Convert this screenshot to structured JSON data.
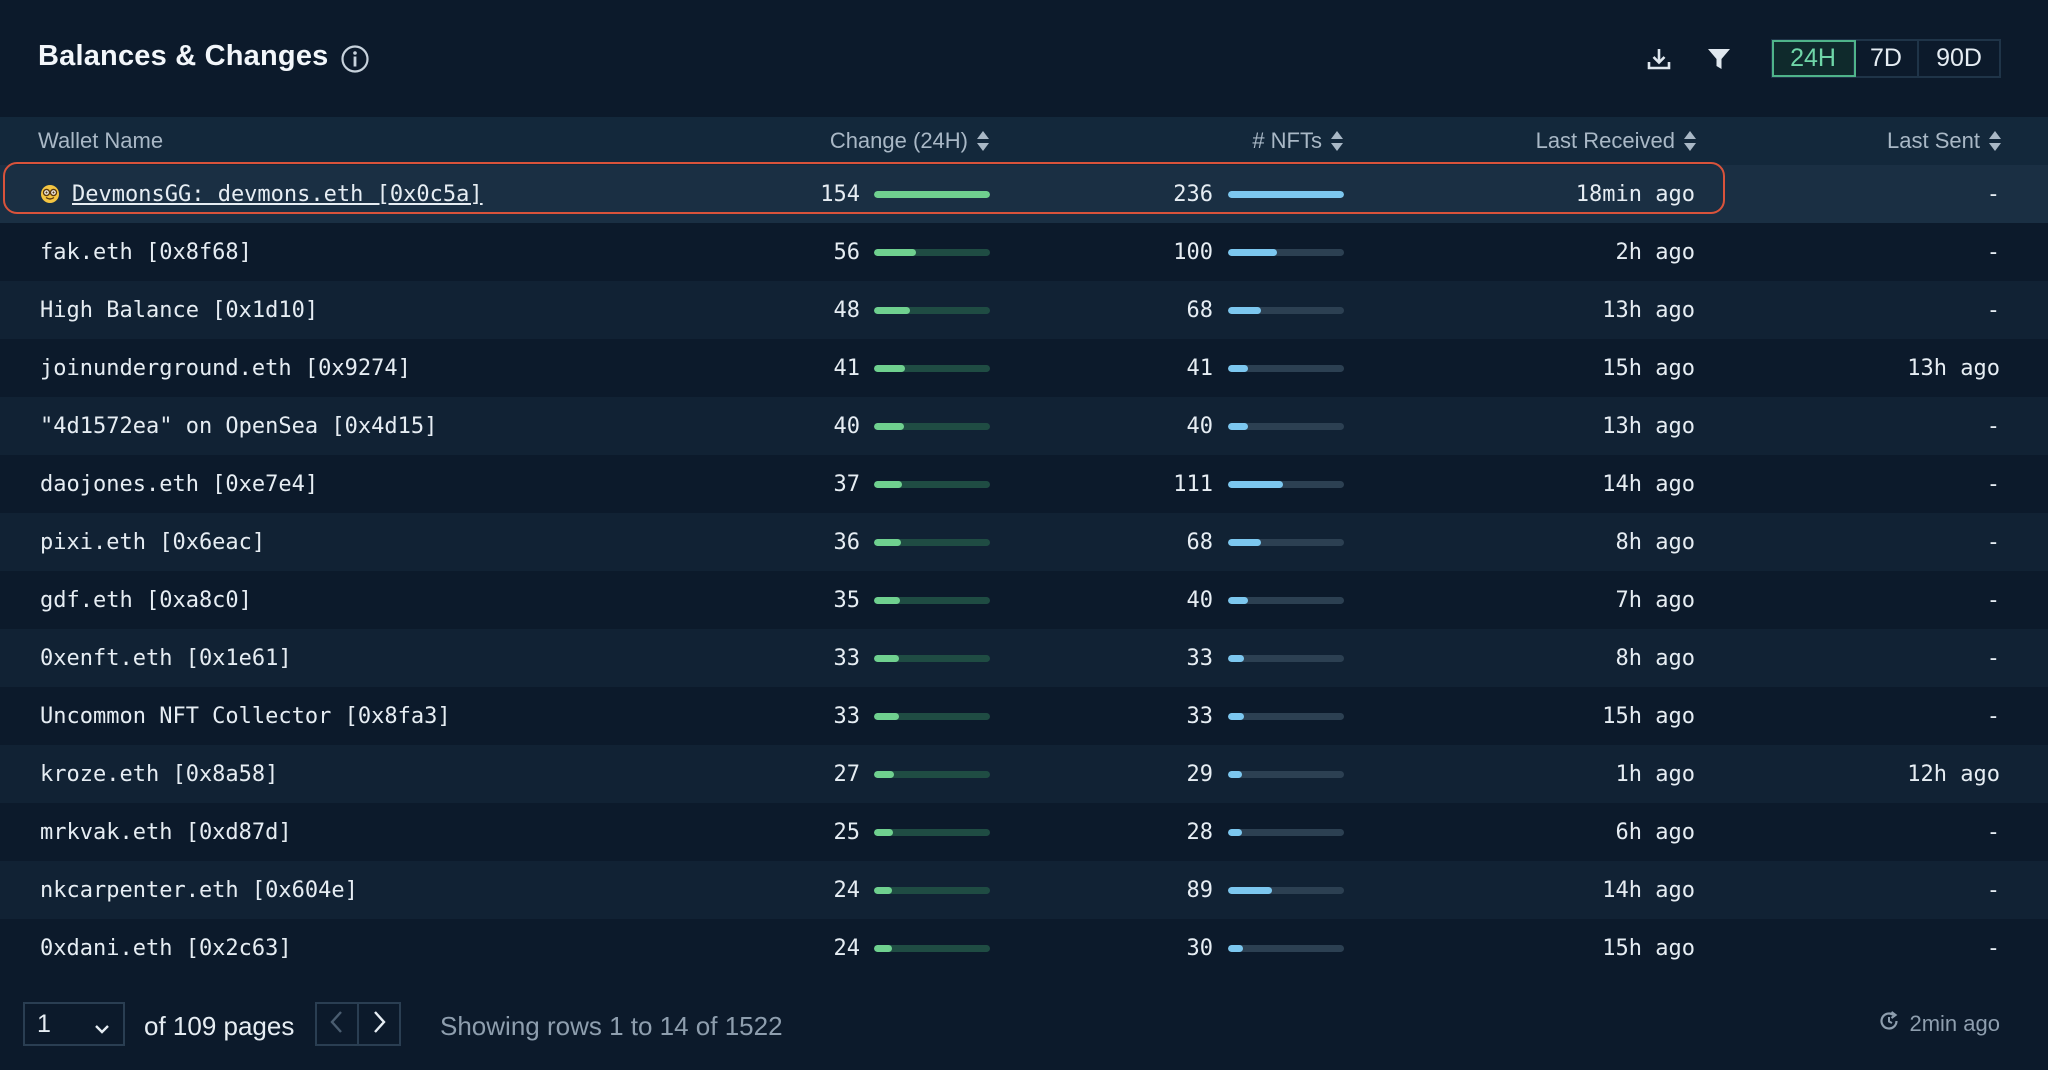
{
  "header": {
    "title": "Balances & Changes",
    "icons": {
      "info": "info-icon",
      "download": "download-icon",
      "filter": "filter-icon"
    },
    "ranges": [
      "24H",
      "7D",
      "90D"
    ],
    "active_range": "24H"
  },
  "table": {
    "columns": {
      "wallet": "Wallet Name",
      "change": "Change (24H)",
      "nfts": "# NFTs",
      "last_received": "Last Received",
      "last_sent": "Last Sent"
    },
    "max_change": 154,
    "max_nfts": 236,
    "rows": [
      {
        "name": "DevmonsGG: devmons.eth [0x0c5a]",
        "emoji": true,
        "link": true,
        "change": "154",
        "nfts": "236",
        "last_received": "18min ago",
        "last_sent": "-"
      },
      {
        "name": "fak.eth [0x8f68]",
        "change": "56",
        "nfts": "100",
        "last_received": "2h ago",
        "last_sent": "-"
      },
      {
        "name": "High Balance [0x1d10]",
        "change": "48",
        "nfts": "68",
        "last_received": "13h ago",
        "last_sent": "-"
      },
      {
        "name": "joinunderground.eth [0x9274]",
        "change": "41",
        "nfts": "41",
        "last_received": "15h ago",
        "last_sent": "13h ago"
      },
      {
        "name": "\"4d1572ea\" on OpenSea [0x4d15]",
        "change": "40",
        "nfts": "40",
        "last_received": "13h ago",
        "last_sent": "-"
      },
      {
        "name": "daojones.eth [0xe7e4]",
        "change": "37",
        "nfts": "111",
        "last_received": "14h ago",
        "last_sent": "-"
      },
      {
        "name": "pixi.eth [0x6eac]",
        "change": "36",
        "nfts": "68",
        "last_received": "8h ago",
        "last_sent": "-"
      },
      {
        "name": "gdf.eth [0xa8c0]",
        "change": "35",
        "nfts": "40",
        "last_received": "7h ago",
        "last_sent": "-"
      },
      {
        "name": "0xenft.eth [0x1e61]",
        "change": "33",
        "nfts": "33",
        "last_received": "8h ago",
        "last_sent": "-"
      },
      {
        "name": "Uncommon NFT Collector [0x8fa3]",
        "change": "33",
        "nfts": "33",
        "last_received": "15h ago",
        "last_sent": "-"
      },
      {
        "name": "kroze.eth [0x8a58]",
        "change": "27",
        "nfts": "29",
        "last_received": "1h ago",
        "last_sent": "12h ago"
      },
      {
        "name": "mrkvak.eth [0xd87d]",
        "change": "25",
        "nfts": "28",
        "last_received": "6h ago",
        "last_sent": "-"
      },
      {
        "name": "nkcarpenter.eth [0x604e]",
        "change": "24",
        "nfts": "89",
        "last_received": "14h ago",
        "last_sent": "-"
      },
      {
        "name": "0xdani.eth [0x2c63]",
        "change": "24",
        "nfts": "30",
        "last_received": "15h ago",
        "last_sent": "-"
      }
    ]
  },
  "footer": {
    "page_value": "1",
    "of_pages": "of 109 pages",
    "showing": "Showing rows 1 to 14 of 1522",
    "refresh": "2min ago",
    "icons": {
      "prev": "chevron-left-icon",
      "next": "chevron-right-icon",
      "refresh": "refresh-icon",
      "dropdown": "chevron-down-icon"
    }
  },
  "colors": {
    "background": "#0c1a2b",
    "accent_green": "#6fd08f",
    "accent_blue": "#7cc7ef",
    "highlight": "#d9533b",
    "active_range": "#4fb48a"
  }
}
